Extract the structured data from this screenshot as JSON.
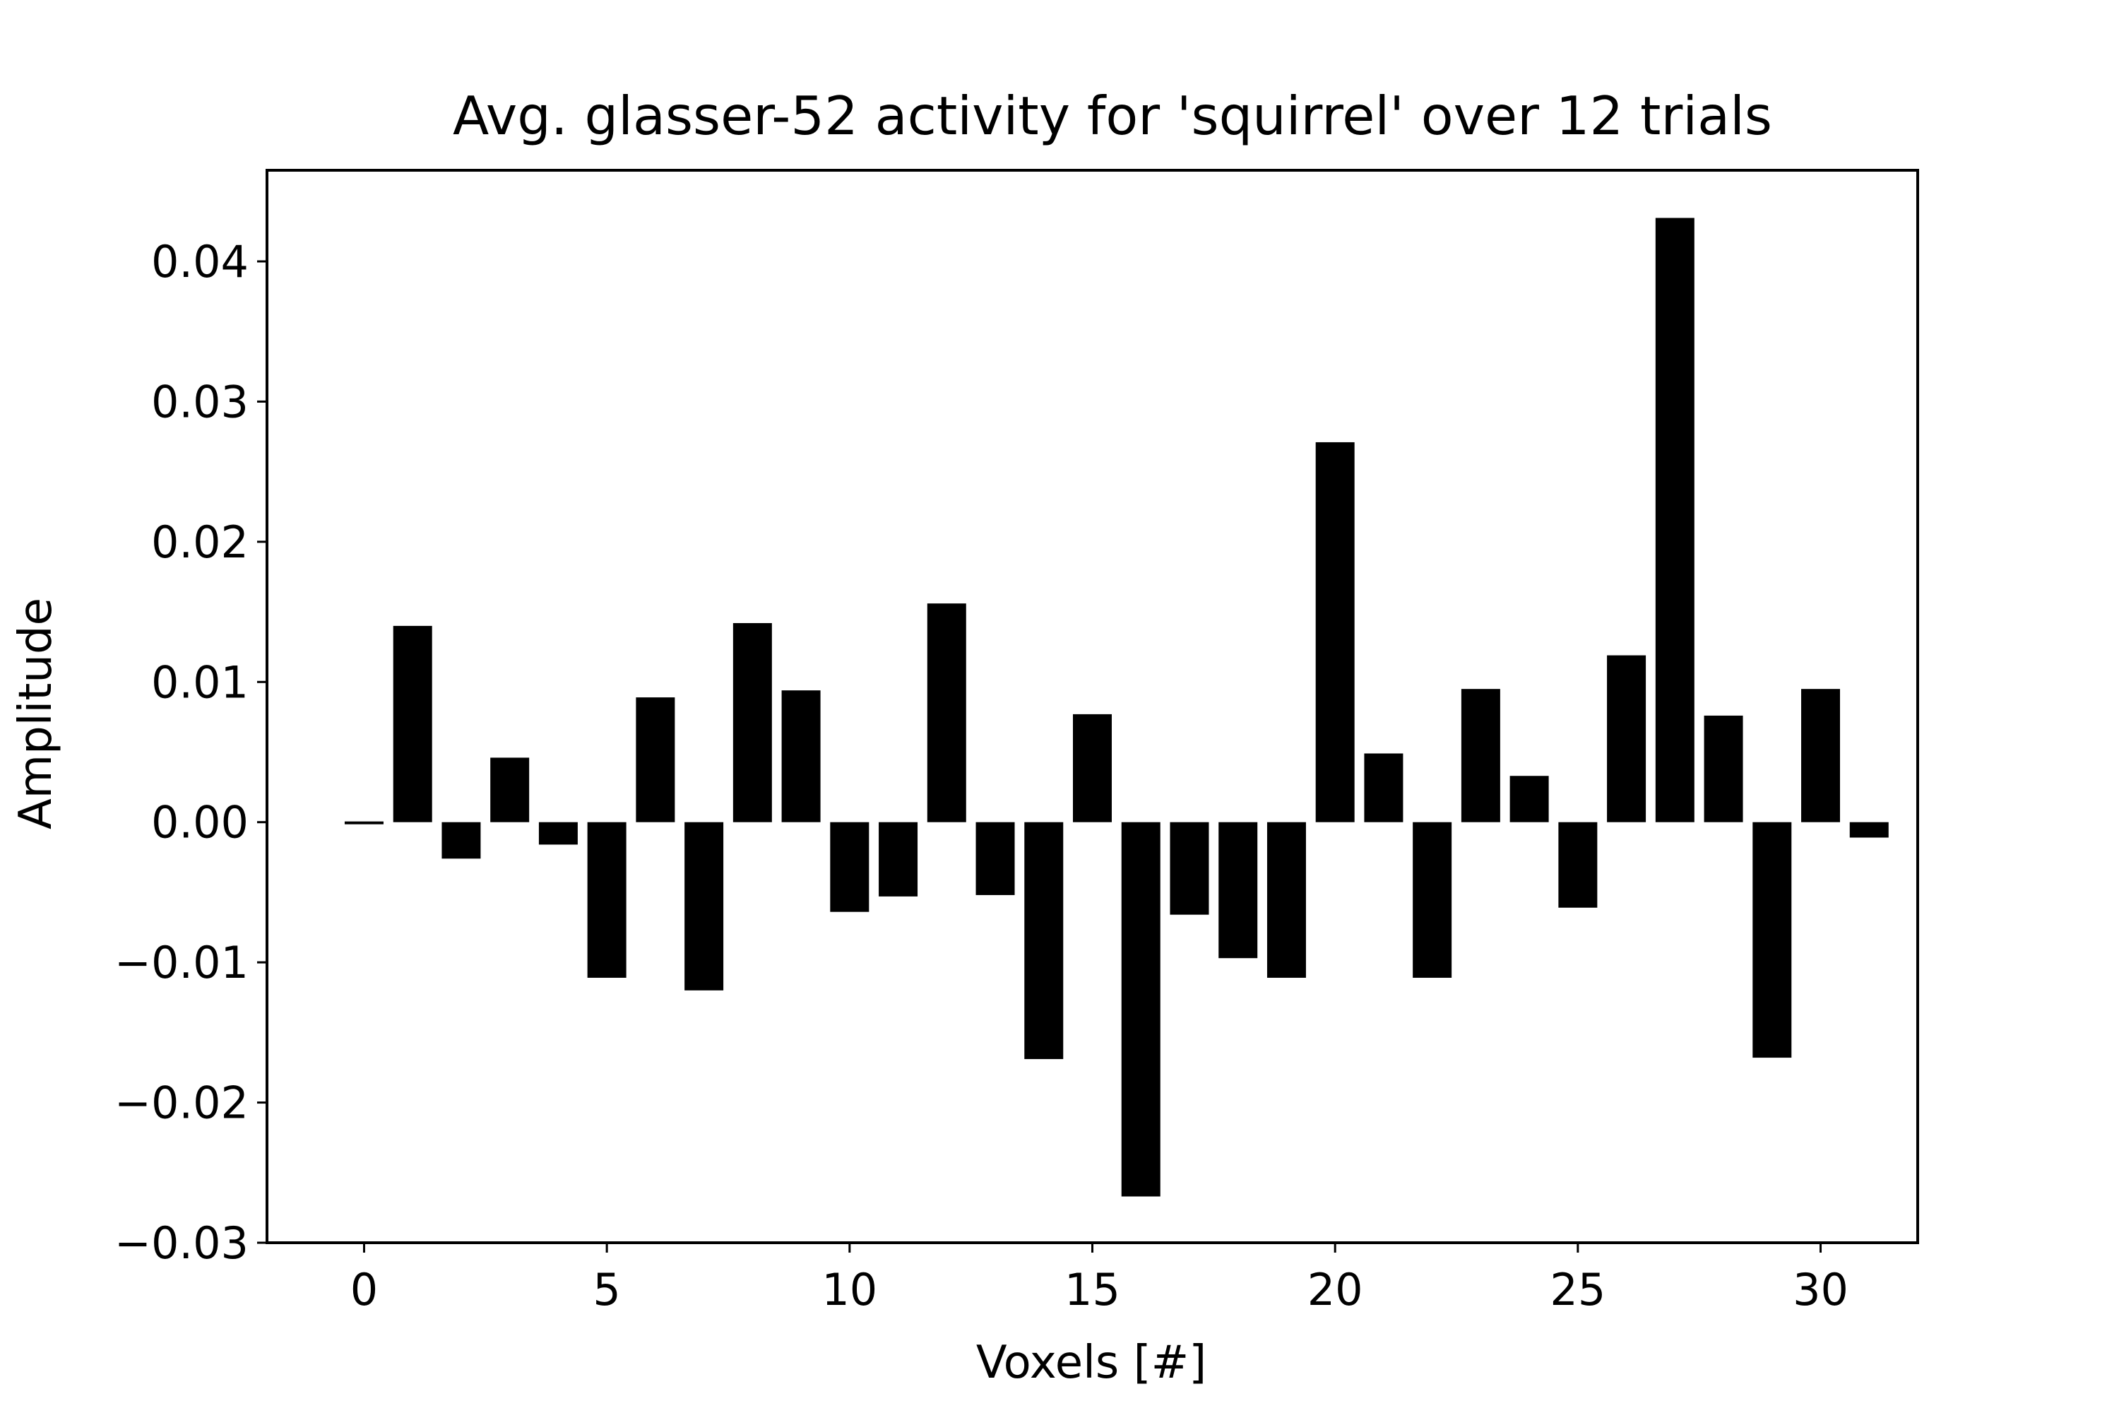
{
  "chart_data": {
    "type": "bar",
    "title": "Avg. glasser-52 activity for 'squirrel' over 12 trials",
    "xlabel": "Voxels [#]",
    "ylabel": "Amplitude",
    "x": [
      0,
      1,
      2,
      3,
      4,
      5,
      6,
      7,
      8,
      9,
      10,
      11,
      12,
      13,
      14,
      15,
      16,
      17,
      18,
      19,
      20,
      21,
      22,
      23,
      24,
      25,
      26,
      27,
      28,
      29,
      30,
      31
    ],
    "values": [
      -0.0002,
      0.014,
      -0.0026,
      0.0046,
      -0.0016,
      -0.0111,
      0.0089,
      -0.012,
      0.0142,
      0.0094,
      -0.0064,
      -0.0053,
      0.0156,
      -0.0052,
      -0.0169,
      0.0077,
      -0.0267,
      -0.0066,
      -0.0097,
      -0.0111,
      0.0271,
      0.0049,
      -0.0111,
      0.0095,
      0.0033,
      -0.0061,
      0.0119,
      0.0431,
      0.0076,
      -0.0168,
      0.0095,
      -0.0011
    ],
    "xlim": [
      -2,
      32
    ],
    "ylim": [
      -0.03,
      0.0465
    ],
    "xticks": [
      0,
      5,
      10,
      15,
      20,
      25,
      30
    ],
    "xtick_labels": [
      "0",
      "5",
      "10",
      "15",
      "20",
      "25",
      "30"
    ],
    "yticks": [
      -0.03,
      -0.02,
      -0.01,
      0.0,
      0.01,
      0.02,
      0.03,
      0.04
    ],
    "ytick_labels": [
      "−0.03",
      "−0.02",
      "−0.01",
      "0.00",
      "0.01",
      "0.02",
      "0.03",
      "0.04"
    ],
    "bar_color": "#000000",
    "grid": false,
    "legend": "none"
  }
}
